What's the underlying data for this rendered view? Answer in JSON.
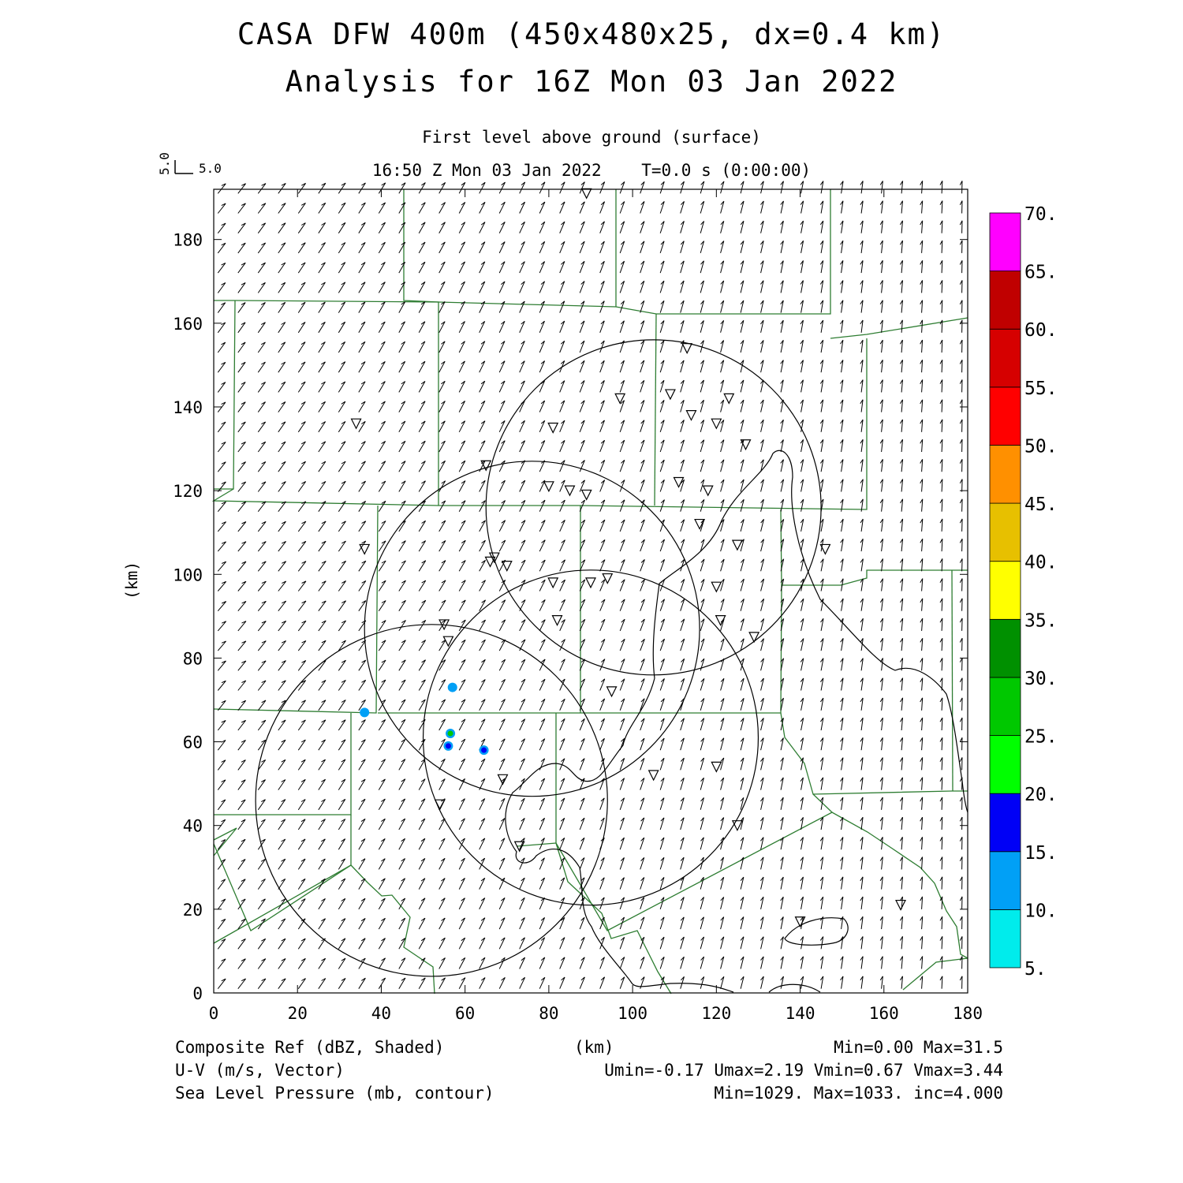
{
  "header": {
    "title_line1": "CASA DFW 400m (450x480x25, dx=0.4 km)",
    "title_line2": "Analysis for 16Z Mon 03 Jan 2022",
    "level": "First level above ground (surface)",
    "time": "16:50 Z Mon 03 Jan 2022    T=0.0 s (0:00:00)",
    "vector_scale_u": "5.0",
    "vector_scale_v": "5.0"
  },
  "axes": {
    "xlabel": "(km)",
    "ylabel": "(km)",
    "x_range": [
      0,
      180
    ],
    "y_range": [
      0,
      192
    ],
    "x_ticks": [
      "0",
      "20",
      "40",
      "60",
      "80",
      "100",
      "120",
      "140",
      "160",
      "180"
    ],
    "y_ticks": [
      "0",
      "20",
      "40",
      "60",
      "80",
      "100",
      "120",
      "140",
      "160",
      "180"
    ]
  },
  "colorbar": {
    "labels": [
      "5.",
      "10.",
      "15.",
      "20.",
      "25.",
      "30.",
      "35.",
      "40.",
      "45.",
      "50.",
      "55.",
      "60.",
      "65.",
      "70."
    ],
    "colors": [
      "#00ecec",
      "#01a0f6",
      "#0000f6",
      "#00ff00",
      "#00c800",
      "#009000",
      "#ffff00",
      "#e7c000",
      "#ff9000",
      "#ff0000",
      "#d60000",
      "#c00000",
      "#ff00ff"
    ]
  },
  "footer": {
    "field1": "Composite Ref (dBZ, Shaded)",
    "field1_stats": "Min=0.00 Max=31.5",
    "field2": "U-V (m/s, Vector)",
    "field2_stats": "Umin=-0.17 Umax=2.19 Vmin=0.67 Vmax=3.44",
    "field3": "Sea Level Pressure (mb, contour)",
    "field3_stats": "Min=1029. Max=1033. inc=4.000"
  },
  "map_data": {
    "radar_rings_km": [
      {
        "cx": 52,
        "cy": 46,
        "r": 42
      },
      {
        "cx": 76,
        "cy": 87,
        "r": 40
      },
      {
        "cx": 90,
        "cy": 61,
        "r": 40
      },
      {
        "cx": 105,
        "cy": 116,
        "r": 40
      }
    ],
    "station_markers_km": [
      [
        89,
        191
      ],
      [
        34,
        136
      ],
      [
        113,
        154
      ],
      [
        97,
        142
      ],
      [
        109,
        143
      ],
      [
        123,
        142
      ],
      [
        114,
        138
      ],
      [
        120,
        136
      ],
      [
        81,
        135
      ],
      [
        127,
        131
      ],
      [
        65,
        126
      ],
      [
        80,
        121
      ],
      [
        85,
        120
      ],
      [
        89,
        119
      ],
      [
        111,
        122
      ],
      [
        118,
        120
      ],
      [
        116,
        112
      ],
      [
        36,
        106
      ],
      [
        125,
        107
      ],
      [
        146,
        106
      ],
      [
        67,
        104
      ],
      [
        66,
        103
      ],
      [
        70,
        102
      ],
      [
        81,
        98
      ],
      [
        90,
        98
      ],
      [
        94,
        99
      ],
      [
        120,
        97
      ],
      [
        82,
        89
      ],
      [
        121,
        89
      ],
      [
        55,
        88
      ],
      [
        56,
        84
      ],
      [
        129,
        85
      ],
      [
        95,
        72
      ],
      [
        69,
        51
      ],
      [
        105,
        52
      ],
      [
        120,
        54
      ],
      [
        54,
        45
      ],
      [
        125,
        40
      ],
      [
        73,
        35
      ],
      [
        140,
        17
      ],
      [
        164,
        21
      ]
    ],
    "reflectivity_echoes_km": [
      {
        "x": 57,
        "y": 73,
        "dbz": 10
      },
      {
        "x": 36,
        "y": 67,
        "dbz": 10
      },
      {
        "x": 56.5,
        "y": 62,
        "dbz": 25
      },
      {
        "x": 56,
        "y": 59,
        "dbz": 15
      },
      {
        "x": 64.5,
        "y": 58,
        "dbz": 15
      }
    ],
    "wind_u_range": [
      -0.17,
      2.19
    ],
    "wind_v_range": [
      0.67,
      3.44
    ]
  }
}
